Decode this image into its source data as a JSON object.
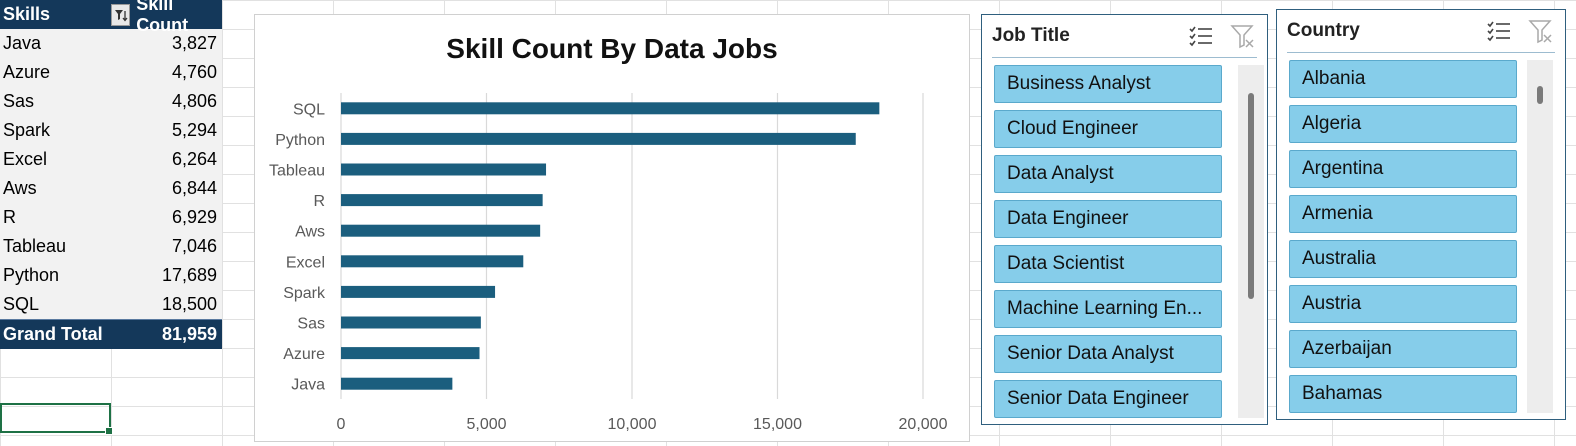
{
  "pivot": {
    "header": {
      "col1": "Skills",
      "col2": "Skill Count"
    },
    "rows": [
      {
        "skill": "Java",
        "count": "3,827"
      },
      {
        "skill": "Azure",
        "count": "4,760"
      },
      {
        "skill": "Sas",
        "count": "4,806"
      },
      {
        "skill": "Spark",
        "count": "5,294"
      },
      {
        "skill": "Excel",
        "count": "6,264"
      },
      {
        "skill": "Aws",
        "count": "6,844"
      },
      {
        "skill": "R",
        "count": "6,929"
      },
      {
        "skill": "Tableau",
        "count": "7,046"
      },
      {
        "skill": "Python",
        "count": "17,689"
      },
      {
        "skill": "SQL",
        "count": "18,500"
      }
    ],
    "total": {
      "label": "Grand Total",
      "value": "81,959"
    }
  },
  "chart_data": {
    "type": "bar",
    "orientation": "horizontal",
    "title": "Skill Count By Data Jobs",
    "categories": [
      "SQL",
      "Python",
      "Tableau",
      "R",
      "Aws",
      "Excel",
      "Spark",
      "Sas",
      "Azure",
      "Java"
    ],
    "values": [
      18500,
      17689,
      7046,
      6929,
      6844,
      6264,
      5294,
      4806,
      4760,
      3827
    ],
    "xlim": [
      0,
      20000
    ],
    "xticks": [
      "0",
      "5,000",
      "10,000",
      "15,000",
      "20,000"
    ],
    "xtick_values": [
      0,
      5000,
      10000,
      15000,
      20000
    ],
    "grid": true,
    "bar_color": "#1b5e7e"
  },
  "slicers": {
    "job_title": {
      "title": "Job Title",
      "items": [
        "Business Analyst",
        "Cloud Engineer",
        "Data Analyst",
        "Data Engineer",
        "Data Scientist",
        "Machine Learning En...",
        "Senior Data Analyst",
        "Senior Data Engineer"
      ],
      "multi_select_icon": "multi-select-icon",
      "clear_filter_icon": "clear-filter-icon"
    },
    "country": {
      "title": "Country",
      "items": [
        "Albania",
        "Algeria",
        "Argentina",
        "Armenia",
        "Australia",
        "Austria",
        "Azerbaijan",
        "Bahamas"
      ],
      "multi_select_icon": "multi-select-icon",
      "clear_filter_icon": "clear-filter-icon"
    }
  },
  "colors": {
    "pivot_header": "#14385a",
    "slicer_item": "#86cdea",
    "bar": "#1b5e7e",
    "selection": "#1e7145"
  }
}
